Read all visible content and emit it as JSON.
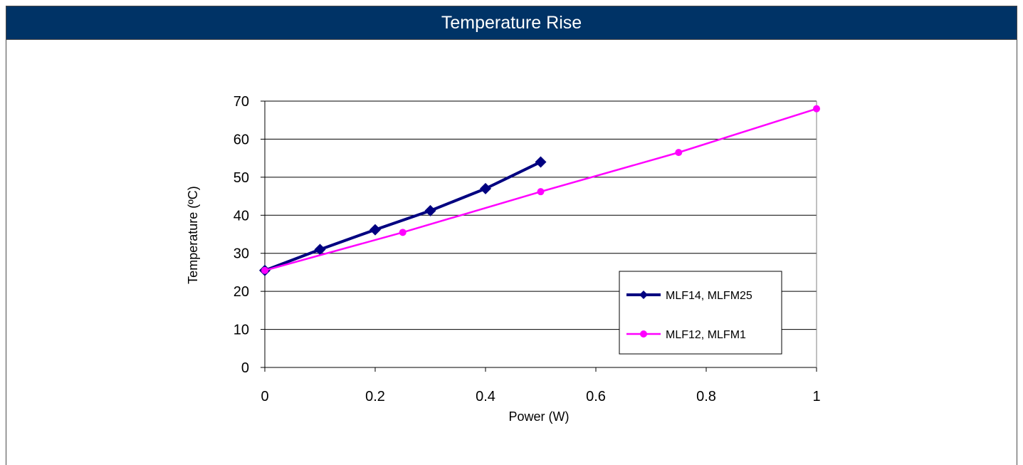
{
  "header": {
    "title": "Temperature Rise"
  },
  "chart_data": {
    "type": "line",
    "xlabel": "Power (W)",
    "ylabel": "Temperature (ºC)",
    "xlim": [
      0,
      1
    ],
    "ylim": [
      0,
      70
    ],
    "x_ticks": [
      "0",
      "0.2",
      "0.4",
      "0.6",
      "0.8",
      "1"
    ],
    "y_ticks": [
      "0",
      "10",
      "20",
      "30",
      "40",
      "50",
      "60",
      "70"
    ],
    "grid": "horizontal",
    "legend_position": "bottom-right",
    "series": [
      {
        "name": "MLF14, MLFM25",
        "color": "#000080",
        "marker": "diamond",
        "x": [
          0,
          0.1,
          0.2,
          0.3,
          0.4,
          0.5
        ],
        "y": [
          25.5,
          31,
          36.2,
          41.2,
          47,
          54
        ]
      },
      {
        "name": "MLF12, MLFM1",
        "color": "#ff00ff",
        "marker": "circle",
        "x": [
          0,
          0.25,
          0.5,
          0.75,
          1
        ],
        "y": [
          25.5,
          35.5,
          46.2,
          56.5,
          68
        ]
      }
    ]
  }
}
